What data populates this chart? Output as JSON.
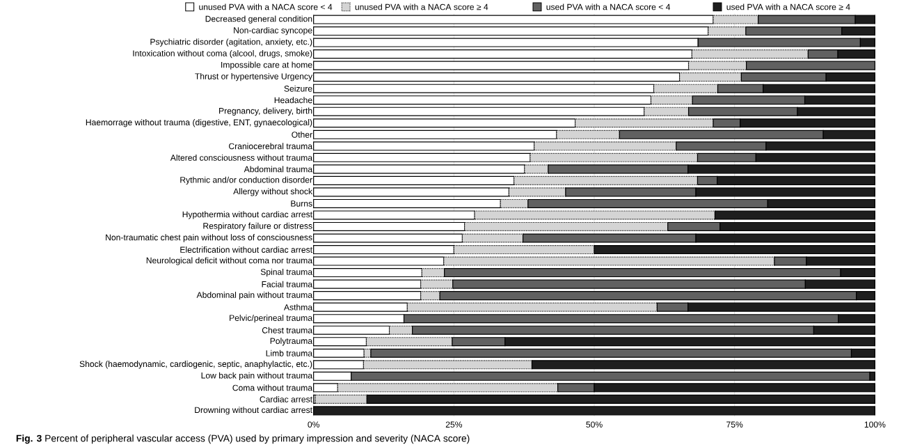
{
  "chart_data": {
    "type": "bar",
    "orientation": "horizontal",
    "stacked": true,
    "grid": "x",
    "legend": "top",
    "title": "**Fig. 3** Percent of peripheral vascular access (PVA) used by primary impression and severity (NACA score)",
    "categories": [
      "Decreased general condition",
      "Non-cardiac syncope",
      "Psychiatric disorder (agitation, anxiety, etc.)",
      "Intoxication without coma (alcool, drugs, smoke)",
      "Impossible care at home",
      "Thrust or hypertensive Urgency",
      "Seizure",
      "Headache",
      "Pregnancy, delivery, birth",
      "Haemorrage without trauma (digestive, ENT, gynaecological)",
      "Other",
      "Craniocerebral trauma",
      "Altered consciousness without trauma",
      "Abdominal trauma",
      "Rythmic and/or conduction disorder",
      "Allergy without shock",
      "Burns",
      "Hypothermia without cardiac arrest",
      "Respiratory failure or distress",
      "Non-traumatic chest pain without loss of consciousness",
      "Electrification without cardiac arrest",
      "Neurological deficit without coma nor trauma",
      "Spinal trauma",
      "Facial trauma",
      "Abdominal pain without trauma",
      "Asthma",
      "Pelvic/perineal trauma",
      "Chest trauma",
      "Polytrauma",
      "Limb trauma",
      "Shock (haemodynamic, cardiogenic, septic, anaphylactic, etc.)",
      "Low back pain without trauma",
      "Coma without trauma",
      "Cardiac arrest",
      "Drowning without cardiac arrest"
    ],
    "series": [
      {
        "name": "unused PVA with a NACA score < 4",
        "color": "#ffffff",
        "line_style": "solid",
        "values": [
          71.2,
          70.3,
          68.5,
          67.4,
          66.8,
          65.2,
          60.6,
          60.1,
          58.9,
          46.6,
          43.3,
          39.3,
          38.6,
          37.6,
          35.7,
          34.8,
          33.3,
          28.7,
          26.9,
          26.5,
          25.0,
          23.2,
          19.3,
          19.1,
          19.1,
          16.7,
          16.1,
          13.5,
          9.4,
          9.0,
          8.9,
          6.7,
          4.3,
          0.3,
          0
        ]
      },
      {
        "name": "unused PVA with a NACA score ≥ 4",
        "color": "#d4d4d4",
        "line_style": "dotted",
        "values": [
          8.0,
          6.7,
          0,
          20.7,
          10.3,
          11.0,
          11.4,
          7.4,
          7.9,
          24.6,
          11.2,
          25.3,
          29.8,
          4.2,
          32.7,
          10.1,
          4.9,
          42.8,
          36.2,
          10.8,
          25.0,
          58.9,
          4.0,
          5.7,
          3.4,
          44.5,
          0,
          4.1,
          15.3,
          1.2,
          30.0,
          0,
          39.2,
          9.2,
          0
        ]
      },
      {
        "name": "used PVA with a NACA score < 4",
        "color": "#616161",
        "line_style": "solid",
        "values": [
          17.3,
          17.1,
          28.9,
          5.3,
          22.9,
          15.1,
          8.1,
          20.0,
          19.4,
          4.8,
          36.3,
          16.0,
          10.4,
          24.9,
          3.5,
          23.2,
          42.7,
          0,
          9.3,
          30.8,
          0,
          5.7,
          70.6,
          62.8,
          74.2,
          5.5,
          77.4,
          71.5,
          9.4,
          85.6,
          0,
          92.4,
          6.5,
          0,
          0
        ]
      },
      {
        "name": "used PVA with a NACA score ≥ 4",
        "color": "#1e1e1e",
        "line_style": "solid",
        "values": [
          3.5,
          5.9,
          2.6,
          6.6,
          0,
          8.7,
          19.9,
          12.5,
          13.8,
          24.0,
          9.2,
          19.4,
          21.2,
          33.3,
          28.1,
          31.9,
          19.1,
          28.5,
          27.6,
          31.9,
          50.0,
          12.2,
          6.1,
          12.4,
          3.3,
          33.3,
          6.5,
          10.9,
          65.9,
          4.2,
          61.1,
          0.9,
          50.0,
          90.5,
          100
        ]
      }
    ],
    "xlim": [
      0,
      100
    ],
    "xticks": [
      {
        "value": 0,
        "label": "0%"
      },
      {
        "value": 25,
        "label": "25%"
      },
      {
        "value": 50,
        "label": "50%"
      },
      {
        "value": 75,
        "label": "75%"
      },
      {
        "value": 100,
        "label": "100%"
      }
    ]
  }
}
